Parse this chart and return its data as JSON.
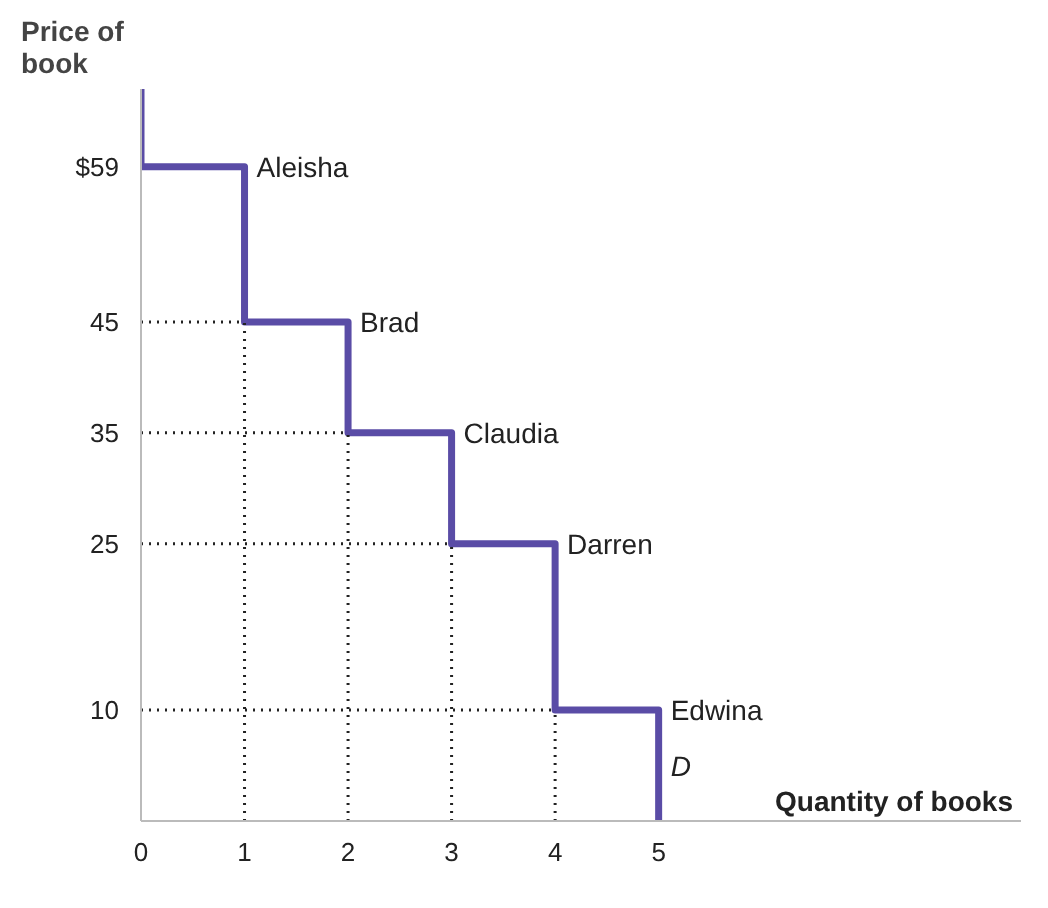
{
  "chart_data": {
    "type": "line",
    "xlabel": "Quantity of books",
    "ylabel": "Price of book",
    "xlim": [
      0,
      8.5
    ],
    "ylim": [
      0,
      66
    ],
    "xticks": [
      0,
      1,
      2,
      3,
      4,
      5
    ],
    "yticks": [
      {
        "value": 59,
        "label": "$59"
      },
      45,
      35,
      25,
      10
    ],
    "series": [
      {
        "color": "#5a4ca6",
        "line_style": "solid",
        "x": [
          0,
          0,
          1,
          1,
          2,
          2,
          3,
          3,
          4,
          4,
          5,
          5
        ],
        "values": [
          66,
          59,
          59,
          45,
          45,
          35,
          35,
          25,
          25,
          10,
          10,
          0
        ]
      },
      {
        "color": "#222222",
        "line_style": "dotted",
        "x": [
          0,
          1,
          null,
          1,
          1,
          null,
          0,
          2,
          null,
          2,
          2,
          null,
          0,
          3,
          null,
          3,
          3,
          null,
          0,
          4,
          null,
          4,
          4
        ],
        "values": [
          45,
          45,
          null,
          0,
          45,
          null,
          35,
          35,
          null,
          0,
          35,
          null,
          25,
          25,
          null,
          0,
          25,
          null,
          10,
          10,
          null,
          0,
          10
        ]
      }
    ],
    "annotations": [
      {
        "text": "Aleisha",
        "x": 1,
        "y": 59
      },
      {
        "text": "Brad",
        "x": 2,
        "y": 45
      },
      {
        "text": "Claudia",
        "x": 3,
        "y": 35
      },
      {
        "text": "Darren",
        "x": 4,
        "y": 25
      },
      {
        "text": "Edwina",
        "x": 5,
        "y": 10
      },
      {
        "text": "D",
        "x": 5,
        "y": 5
      }
    ],
    "grid": false
  }
}
